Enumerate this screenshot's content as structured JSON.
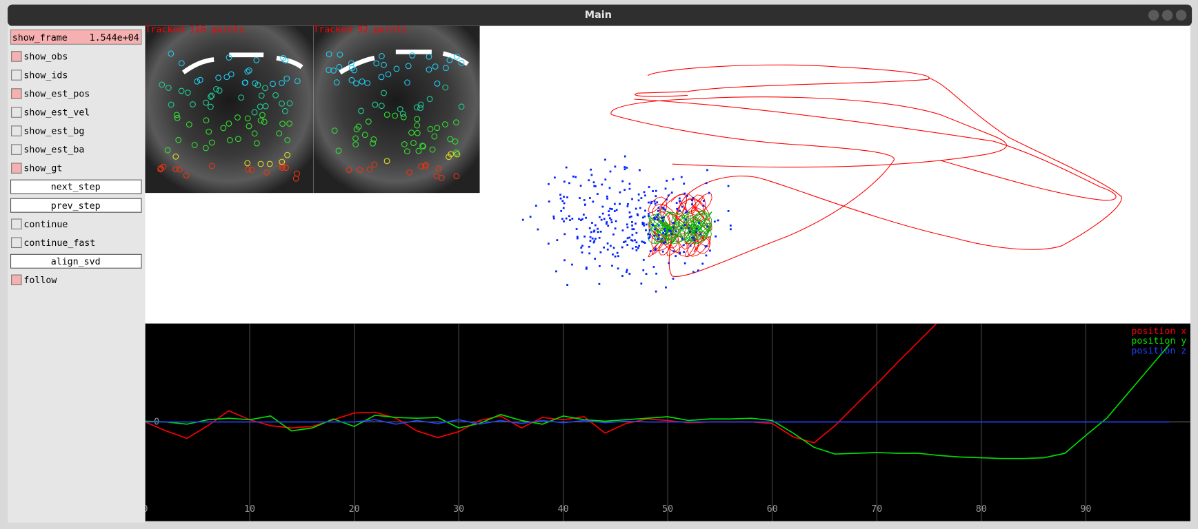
{
  "window": {
    "title": "Main"
  },
  "panel": {
    "slider": {
      "label": "show_frame",
      "value_label": "1.544e+04"
    },
    "items": [
      {
        "kind": "checkbox",
        "label": "show_obs",
        "checked": true
      },
      {
        "kind": "checkbox",
        "label": "show_ids",
        "checked": false
      },
      {
        "kind": "checkbox",
        "label": "show_est_pos",
        "checked": true
      },
      {
        "kind": "checkbox",
        "label": "show_est_vel",
        "checked": false
      },
      {
        "kind": "checkbox",
        "label": "show_est_bg",
        "checked": false
      },
      {
        "kind": "checkbox",
        "label": "show_est_ba",
        "checked": false
      },
      {
        "kind": "checkbox",
        "label": "show_gt",
        "checked": true
      },
      {
        "kind": "button",
        "label": "next_step"
      },
      {
        "kind": "button",
        "label": "prev_step"
      },
      {
        "kind": "checkbox",
        "label": "continue",
        "checked": false
      },
      {
        "kind": "checkbox",
        "label": "continue_fast",
        "checked": false
      },
      {
        "kind": "button",
        "label": "align_svd"
      },
      {
        "kind": "checkbox",
        "label": "follow",
        "checked": true
      }
    ]
  },
  "views": {
    "left": "Tracked 116 points",
    "right": "Tracked 92 points"
  },
  "chart_data": {
    "type": "line",
    "x": [
      0,
      2,
      4,
      6,
      8,
      10,
      12,
      14,
      16,
      18,
      20,
      22,
      24,
      26,
      28,
      30,
      32,
      34,
      36,
      38,
      40,
      42,
      44,
      46,
      48,
      50,
      52,
      54,
      56,
      58,
      60,
      62,
      64,
      66,
      68,
      70,
      72,
      74,
      76,
      78,
      80,
      82,
      84,
      86,
      88,
      90,
      92,
      94,
      96,
      98
    ],
    "series": [
      {
        "name": "position x",
        "color": "#ff0000",
        "values": [
          0,
          -1.2,
          -2.2,
          -0.5,
          1.5,
          0.3,
          -0.5,
          -0.8,
          -0.6,
          0.3,
          1.2,
          1.3,
          0.5,
          -1.2,
          -2.1,
          -1.3,
          0.2,
          0.8,
          -0.8,
          0.6,
          0.3,
          0.7,
          -1.5,
          -0.2,
          0.4,
          0.2,
          -0.1,
          0,
          0,
          0,
          -0.2,
          -2.0,
          -2.8,
          -0.5,
          2.3,
          5.1,
          8.0,
          10.8,
          13.6,
          null,
          null,
          null,
          null,
          null,
          null,
          null,
          null,
          null,
          null,
          null
        ]
      },
      {
        "name": "position y",
        "color": "#00e000",
        "values": [
          0.1,
          0,
          -0.3,
          0.3,
          0.5,
          0.3,
          0.8,
          -1.2,
          -0.8,
          0.4,
          -0.6,
          0.9,
          0.6,
          0.5,
          0.6,
          -0.8,
          -0.2,
          1.0,
          0.2,
          -0.3,
          0.8,
          0.3,
          0.1,
          0.3,
          0.5,
          0.7,
          0.2,
          0.4,
          0.4,
          0.5,
          0.2,
          -1.5,
          -3.4,
          -4.3,
          -4.2,
          -4.1,
          -4.2,
          -4.2,
          -4.5,
          -4.7,
          -4.8,
          -4.9,
          -4.9,
          -4.8,
          -4.2,
          -1.8,
          0.5,
          3.8,
          7.1,
          10.4
        ]
      },
      {
        "name": "position z",
        "color": "#2040ff",
        "values": [
          0,
          0,
          0,
          0,
          0,
          0,
          0,
          0,
          0,
          0,
          0,
          0.3,
          -0.3,
          0.2,
          -0.2,
          0.3,
          -0.3,
          0.2,
          -0.2,
          0.2,
          -0.1,
          0.2,
          -0.1,
          0.1,
          0,
          0,
          0,
          0,
          0,
          0,
          0,
          0,
          0,
          0,
          0,
          0,
          0,
          0,
          0,
          0,
          0,
          0,
          0,
          0,
          0,
          0,
          0,
          0,
          0,
          0
        ]
      }
    ],
    "xlim": [
      0,
      100
    ],
    "ylim": [
      -13.3,
      13.2
    ],
    "xticks": [
      0,
      10,
      20,
      30,
      40,
      50,
      60,
      70,
      80,
      90
    ],
    "yticks": [
      0
    ],
    "grid": true,
    "legend": "upper right"
  }
}
